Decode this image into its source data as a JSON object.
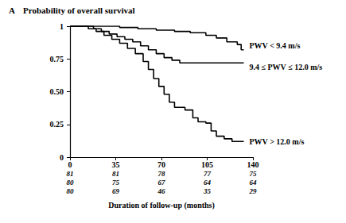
{
  "chart_data": {
    "type": "step",
    "panel_label": "A",
    "title": "Probability of overall survival",
    "x_label": "Duration of follow-up (months)",
    "xlim": [
      0,
      140
    ],
    "xticks": [
      0,
      35,
      70,
      105,
      140
    ],
    "ylim": [
      0,
      1
    ],
    "yticks": [
      0,
      0.25,
      {
        "value": 0.5,
        "label": "0.50"
      },
      0.75,
      1
    ],
    "grid": false,
    "line_style": "solid",
    "series": [
      {
        "name": "PWV < 9.4 m/s",
        "color": "#000000",
        "x": [
          0,
          38,
          52,
          66,
          80,
          92,
          104,
          112,
          120,
          128,
          131,
          133
        ],
        "values": [
          1,
          0.99,
          0.98,
          0.97,
          0.96,
          0.95,
          0.93,
          0.91,
          0.88,
          0.86,
          0.82,
          0.82
        ]
      },
      {
        "name": "9.4 ≤ PWV ≤ 12.0 m/s",
        "color": "#000000",
        "x": [
          0,
          18,
          24,
          30,
          36,
          42,
          48,
          54,
          60,
          66,
          72,
          78,
          84,
          133
        ],
        "values": [
          1,
          0.98,
          0.96,
          0.94,
          0.92,
          0.9,
          0.88,
          0.85,
          0.82,
          0.79,
          0.76,
          0.74,
          0.72,
          0.72
        ]
      },
      {
        "name": "PWV > 12.0 m/s",
        "color": "#000000",
        "x": [
          0,
          14,
          20,
          26,
          32,
          38,
          44,
          50,
          56,
          60,
          64,
          68,
          72,
          76,
          80,
          88,
          94,
          98,
          104,
          108,
          112,
          118,
          124,
          133
        ],
        "values": [
          1,
          0.98,
          0.96,
          0.93,
          0.9,
          0.87,
          0.83,
          0.79,
          0.73,
          0.67,
          0.6,
          0.54,
          0.48,
          0.42,
          0.38,
          0.36,
          0.3,
          0.27,
          0.26,
          0.2,
          0.16,
          0.14,
          0.12,
          0.12
        ]
      }
    ],
    "at_risk": {
      "x": [
        0,
        35,
        70,
        105,
        140
      ],
      "rows": [
        [
          81,
          81,
          78,
          77,
          75
        ],
        [
          80,
          75,
          67,
          64,
          64
        ],
        [
          80,
          69,
          46,
          35,
          29
        ]
      ]
    }
  }
}
